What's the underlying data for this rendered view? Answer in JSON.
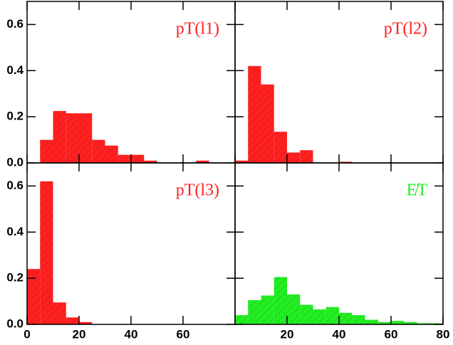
{
  "chart_data": [
    {
      "type": "histogram",
      "title": "pT(l1)",
      "color": "#ff2020",
      "bins": [
        0,
        5,
        10,
        15,
        20,
        25,
        30,
        35,
        40,
        45,
        50,
        55,
        60,
        65,
        70,
        75,
        80
      ],
      "values": [
        0,
        0.1,
        0.225,
        0.215,
        0.215,
        0.1,
        0.075,
        0.035,
        0.035,
        0.01,
        0,
        0,
        0,
        0.01,
        0,
        0
      ],
      "xlim": [
        0,
        80
      ],
      "ylim": [
        0,
        0.7
      ],
      "xticks": [
        0,
        20,
        40,
        60,
        80
      ],
      "show_xtick_labels": false,
      "yticks": [
        {
          "value": 0,
          "label": "0.0"
        },
        0.2,
        0.4,
        0.6
      ],
      "show_ytick_labels": true
    },
    {
      "type": "histogram",
      "title": "pT(l2)",
      "color": "#ff2020",
      "bins": [
        0,
        5,
        10,
        15,
        20,
        25,
        30,
        35,
        40,
        45,
        50,
        55,
        60,
        65,
        70,
        75,
        80
      ],
      "values": [
        0.01,
        0.42,
        0.34,
        0.135,
        0.045,
        0.055,
        0,
        0,
        0.005,
        0,
        0,
        0,
        0,
        0,
        0,
        0
      ],
      "xlim": [
        0,
        80
      ],
      "ylim": [
        0,
        0.7
      ],
      "xticks": [
        0,
        20,
        40,
        60,
        80
      ],
      "show_xtick_labels": false,
      "yticks": [
        0,
        0.2,
        0.4,
        0.6
      ],
      "show_ytick_labels": false
    },
    {
      "type": "histogram",
      "title": "pT(l3)",
      "color": "#ff2020",
      "bins": [
        0,
        5,
        10,
        15,
        20,
        25,
        30,
        35,
        40,
        45,
        50,
        55,
        60,
        65,
        70,
        75,
        80
      ],
      "values": [
        0.24,
        0.62,
        0.095,
        0.03,
        0.01,
        0,
        0,
        0,
        0,
        0,
        0,
        0,
        0,
        0,
        0,
        0
      ],
      "xlim": [
        0,
        80
      ],
      "ylim": [
        0,
        0.7
      ],
      "xticks": [
        0,
        20,
        40,
        60
      ],
      "show_xtick_labels": true,
      "yticks": [
        {
          "value": 0,
          "label": "0.0"
        },
        0.2,
        0.4,
        0.6
      ],
      "show_ytick_labels": true
    },
    {
      "type": "histogram",
      "title": "E̸T",
      "color": "#22ee22",
      "bins": [
        0,
        5,
        10,
        15,
        20,
        25,
        30,
        35,
        40,
        45,
        50,
        55,
        60,
        65,
        70,
        75,
        80
      ],
      "values": [
        0.04,
        0.105,
        0.125,
        0.205,
        0.13,
        0.085,
        0.065,
        0.075,
        0.05,
        0.04,
        0.02,
        0.01,
        0.015,
        0.01,
        0.005,
        0.005
      ],
      "xlim": [
        0,
        80
      ],
      "ylim": [
        0,
        0.7
      ],
      "xticks": [
        20,
        40,
        60,
        80
      ],
      "show_xtick_labels": true,
      "yticks": [
        0,
        0.2,
        0.4,
        0.6
      ],
      "show_ytick_labels": false
    }
  ]
}
